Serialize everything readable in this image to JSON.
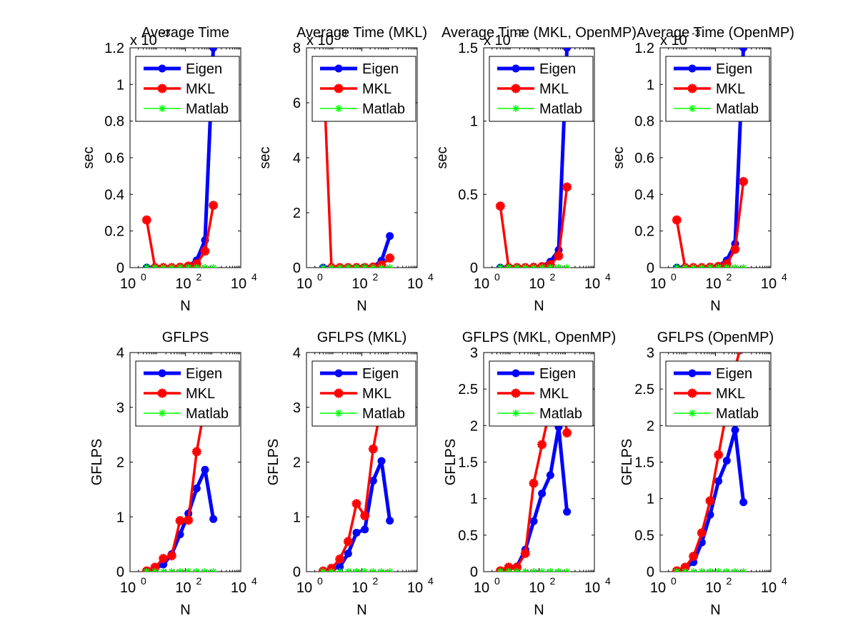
{
  "figure": {
    "background": "#ffffff",
    "colors": {
      "Eigen": "#0000ff",
      "MKL": "#ff0000",
      "Matlab": "#00ff00"
    }
  },
  "chart_data": [
    {
      "type": "line",
      "title": "Average Time",
      "xlabel": "N",
      "ylabel": "sec",
      "xscale": "log",
      "xlim": [
        1,
        10000
      ],
      "xticks": [
        1,
        100,
        10000
      ],
      "xtick_labels": [
        [
          "10",
          "0"
        ],
        [
          "10",
          "2"
        ],
        [
          "10",
          "4"
        ]
      ],
      "ylim": [
        0,
        0.0012
      ],
      "yticks": [
        0,
        0.0002,
        0.0004,
        0.0006,
        0.0008,
        0.001,
        0.0012
      ],
      "ytick_labels": [
        "0",
        "0.2",
        "0.4",
        "0.6",
        "0.8",
        "1",
        "1.2"
      ],
      "yexponent": [
        "x 10",
        "-3"
      ],
      "legend": "top-left",
      "x": [
        4,
        8,
        16,
        32,
        64,
        128,
        256,
        512,
        1024
      ],
      "series": [
        {
          "name": "Eigen",
          "values": [
            0,
            0,
            0,
            0,
            2e-06,
            8e-06,
            4e-05,
            0.00015,
            0.0012
          ]
        },
        {
          "name": "MKL",
          "values": [
            0.00026,
            0,
            0,
            0,
            2e-06,
            8e-06,
            2e-05,
            9e-05,
            0.00034
          ]
        },
        {
          "name": "Matlab",
          "values": [
            0,
            0,
            0,
            0,
            0,
            0,
            0,
            0,
            0
          ]
        }
      ]
    },
    {
      "type": "line",
      "title": "Average Time (MKL)",
      "xlabel": "N",
      "ylabel": "sec",
      "xscale": "log",
      "xlim": [
        1,
        10000
      ],
      "xticks": [
        1,
        100,
        10000
      ],
      "xtick_labels": [
        [
          "10",
          "0"
        ],
        [
          "10",
          "2"
        ],
        [
          "10",
          "4"
        ]
      ],
      "ylim": [
        0,
        0.008
      ],
      "yticks": [
        0,
        0.002,
        0.004,
        0.006,
        0.008
      ],
      "ytick_labels": [
        "0",
        "2",
        "4",
        "6",
        "8"
      ],
      "yexponent": [
        "x 10",
        "-3"
      ],
      "legend": "top-left",
      "x": [
        4,
        8,
        16,
        32,
        64,
        128,
        256,
        512,
        1024
      ],
      "series": [
        {
          "name": "Eigen",
          "values": [
            0,
            0,
            0,
            0,
            0,
            0,
            3e-05,
            0.00025,
            0.00115
          ]
        },
        {
          "name": "MKL",
          "values": [
            0.0075,
            0,
            0,
            0,
            0,
            0,
            2e-05,
            0.0001,
            0.00035
          ]
        },
        {
          "name": "Matlab",
          "values": [
            0,
            0,
            0,
            0,
            0,
            0,
            0,
            0,
            0
          ]
        }
      ]
    },
    {
      "type": "line",
      "title": "Average Time (MKL, OpenMP)",
      "xlabel": "N",
      "ylabel": "sec",
      "xscale": "log",
      "xlim": [
        1,
        10000
      ],
      "xticks": [
        1,
        100,
        10000
      ],
      "xtick_labels": [
        [
          "10",
          "0"
        ],
        [
          "10",
          "2"
        ],
        [
          "10",
          "4"
        ]
      ],
      "ylim": [
        0,
        0.0015
      ],
      "yticks": [
        0,
        0.0005,
        0.001,
        0.0015
      ],
      "ytick_labels": [
        "0",
        "0.5",
        "1",
        "1.5"
      ],
      "yexponent": [
        "x 10",
        "-3"
      ],
      "legend": "top-left",
      "x": [
        4,
        8,
        16,
        32,
        64,
        128,
        256,
        512,
        1024
      ],
      "series": [
        {
          "name": "Eigen",
          "values": [
            0,
            0,
            0,
            0,
            3e-06,
            1e-05,
            4e-05,
            0.00012,
            0.0015
          ]
        },
        {
          "name": "MKL",
          "values": [
            0.00042,
            0,
            0,
            0,
            2e-06,
            6e-06,
            2e-05,
            8e-05,
            0.00055
          ]
        },
        {
          "name": "Matlab",
          "values": [
            0,
            0,
            0,
            0,
            0,
            0,
            0,
            0,
            0
          ]
        }
      ]
    },
    {
      "type": "line",
      "title": "Average Time (OpenMP)",
      "xlabel": "N",
      "ylabel": "sec",
      "xscale": "log",
      "xlim": [
        1,
        10000
      ],
      "xticks": [
        1,
        100,
        10000
      ],
      "xtick_labels": [
        [
          "10",
          "0"
        ],
        [
          "10",
          "2"
        ],
        [
          "10",
          "4"
        ]
      ],
      "ylim": [
        0,
        0.0012
      ],
      "yticks": [
        0,
        0.0002,
        0.0004,
        0.0006,
        0.0008,
        0.001,
        0.0012
      ],
      "ytick_labels": [
        "0",
        "0.2",
        "0.4",
        "0.6",
        "0.8",
        "1",
        "1.2"
      ],
      "yexponent": [
        "x 10",
        "-3"
      ],
      "legend": "top-left",
      "x": [
        4,
        8,
        16,
        32,
        64,
        128,
        256,
        512,
        1024
      ],
      "series": [
        {
          "name": "Eigen",
          "values": [
            0,
            0,
            0,
            0,
            2e-06,
            8e-06,
            4e-05,
            0.00013,
            0.0012
          ]
        },
        {
          "name": "MKL",
          "values": [
            0.00026,
            0,
            0,
            0,
            2e-06,
            6e-06,
            2e-05,
            0.0001,
            0.00047
          ]
        },
        {
          "name": "Matlab",
          "values": [
            0,
            0,
            0,
            0,
            0,
            0,
            0,
            0,
            0
          ]
        }
      ]
    },
    {
      "type": "line",
      "title": "GFLPS",
      "xlabel": "N",
      "ylabel": "GFLPS",
      "xscale": "log",
      "xlim": [
        1,
        10000
      ],
      "xticks": [
        1,
        100,
        10000
      ],
      "xtick_labels": [
        [
          "10",
          "0"
        ],
        [
          "10",
          "2"
        ],
        [
          "10",
          "4"
        ]
      ],
      "ylim": [
        0,
        4
      ],
      "yticks": [
        0,
        1,
        2,
        3,
        4
      ],
      "ytick_labels": [
        "0",
        "1",
        "2",
        "3",
        "4"
      ],
      "legend": "top-left",
      "x": [
        4,
        8,
        16,
        32,
        64,
        128,
        256,
        512,
        1024
      ],
      "series": [
        {
          "name": "Eigen",
          "values": [
            0.02,
            0.06,
            0.13,
            0.32,
            0.68,
            1.06,
            1.52,
            1.86,
            0.96
          ]
        },
        {
          "name": "MKL",
          "values": [
            0.01,
            0.08,
            0.24,
            0.29,
            0.93,
            0.94,
            2.19,
            3.05,
            3.6
          ]
        },
        {
          "name": "Matlab",
          "values": [
            0,
            0,
            0,
            0,
            0,
            0,
            0,
            0,
            0
          ]
        }
      ]
    },
    {
      "type": "line",
      "title": "GFLPS (MKL)",
      "xlabel": "N",
      "ylabel": "GFLPS",
      "xscale": "log",
      "xlim": [
        1,
        10000
      ],
      "xticks": [
        1,
        100,
        10000
      ],
      "xtick_labels": [
        [
          "10",
          "0"
        ],
        [
          "10",
          "2"
        ],
        [
          "10",
          "4"
        ]
      ],
      "ylim": [
        0,
        4
      ],
      "yticks": [
        0,
        1,
        2,
        3,
        4
      ],
      "ytick_labels": [
        "0",
        "1",
        "2",
        "3",
        "4"
      ],
      "legend": "top-left",
      "x": [
        4,
        8,
        16,
        32,
        64,
        128,
        256,
        512,
        1024
      ],
      "series": [
        {
          "name": "Eigen",
          "values": [
            0.01,
            0.04,
            0.09,
            0.33,
            0.71,
            0.77,
            1.66,
            2.02,
            0.93
          ]
        },
        {
          "name": "MKL",
          "values": [
            0.01,
            0.06,
            0.23,
            0.55,
            1.24,
            1.02,
            2.24,
            3.05,
            3.6
          ]
        },
        {
          "name": "Matlab",
          "values": [
            0,
            0,
            0,
            0,
            0,
            0,
            0,
            0,
            0
          ]
        }
      ]
    },
    {
      "type": "line",
      "title": "GFLPS (MKL, OpenMP)",
      "xlabel": "N",
      "ylabel": "GFLPS",
      "xscale": "log",
      "xlim": [
        1,
        10000
      ],
      "xticks": [
        1,
        100,
        10000
      ],
      "xtick_labels": [
        [
          "10",
          "0"
        ],
        [
          "10",
          "2"
        ],
        [
          "10",
          "4"
        ]
      ],
      "ylim": [
        0,
        3
      ],
      "yticks": [
        0,
        0.5,
        1,
        1.5,
        2,
        2.5,
        3
      ],
      "ytick_labels": [
        "0",
        "0.5",
        "1",
        "1.5",
        "2",
        "2.5",
        "3"
      ],
      "legend": "top-left",
      "x": [
        4,
        8,
        16,
        32,
        64,
        128,
        256,
        512,
        1024
      ],
      "series": [
        {
          "name": "Eigen",
          "values": [
            0.01,
            0.05,
            0.07,
            0.3,
            0.69,
            1.07,
            1.32,
            1.98,
            0.82
          ]
        },
        {
          "name": "MKL",
          "values": [
            0.01,
            0.06,
            0.06,
            0.25,
            1.21,
            1.74,
            2.25,
            2.8,
            1.9
          ]
        },
        {
          "name": "Matlab",
          "values": [
            0,
            0,
            0,
            0,
            0,
            0,
            0,
            0,
            0
          ]
        }
      ]
    },
    {
      "type": "line",
      "title": "GFLPS (OpenMP)",
      "xlabel": "N",
      "ylabel": "GFLPS",
      "xscale": "log",
      "xlim": [
        1,
        10000
      ],
      "xticks": [
        1,
        100,
        10000
      ],
      "xtick_labels": [
        [
          "10",
          "0"
        ],
        [
          "10",
          "2"
        ],
        [
          "10",
          "4"
        ]
      ],
      "ylim": [
        0,
        3
      ],
      "yticks": [
        0,
        0.5,
        1,
        1.5,
        2,
        2.5,
        3
      ],
      "ytick_labels": [
        "0",
        "0.5",
        "1",
        "1.5",
        "2",
        "2.5",
        "3"
      ],
      "legend": "top-left",
      "x": [
        4,
        8,
        16,
        32,
        64,
        128,
        256,
        512,
        1024
      ],
      "series": [
        {
          "name": "Eigen",
          "values": [
            0.01,
            0.05,
            0.13,
            0.4,
            0.78,
            1.24,
            1.52,
            1.94,
            0.95
          ]
        },
        {
          "name": "MKL",
          "values": [
            0.01,
            0.06,
            0.21,
            0.53,
            0.97,
            1.6,
            2.2,
            2.8,
            3.2
          ]
        },
        {
          "name": "Matlab",
          "values": [
            0,
            0,
            0,
            0,
            0,
            0,
            0,
            0,
            0
          ]
        }
      ]
    }
  ]
}
